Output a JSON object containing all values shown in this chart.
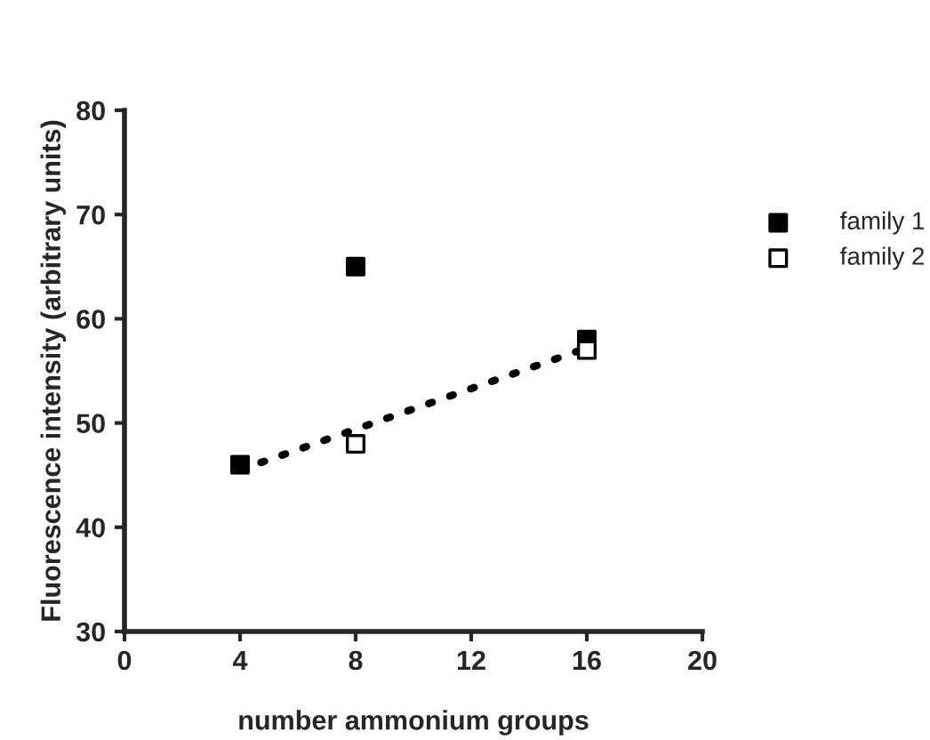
{
  "chart_data": {
    "type": "scatter",
    "xlabel": "number ammonium groups",
    "ylabel": "Fluorescence intensity (arbitrary units)",
    "xlim": [
      0,
      20
    ],
    "xticks": [
      0,
      4,
      8,
      12,
      16,
      20
    ],
    "ylim": [
      30,
      80
    ],
    "yticks": [
      30,
      40,
      50,
      60,
      70,
      80
    ],
    "grid": false,
    "legend": "right",
    "marker": "square",
    "series": [
      {
        "name": "family 1",
        "color": "#000000",
        "x": [
          4,
          8,
          16
        ],
        "values": [
          46,
          65,
          58
        ]
      },
      {
        "name": "family 2",
        "color": "#ffffff",
        "x": [
          8,
          16
        ],
        "values": [
          48,
          57
        ]
      },
      {
        "type": "line",
        "color": "#000000",
        "line_style": "dotted",
        "marker": "none",
        "x": [
          4,
          16
        ],
        "values": [
          45.5,
          57.2
        ]
      }
    ]
  }
}
